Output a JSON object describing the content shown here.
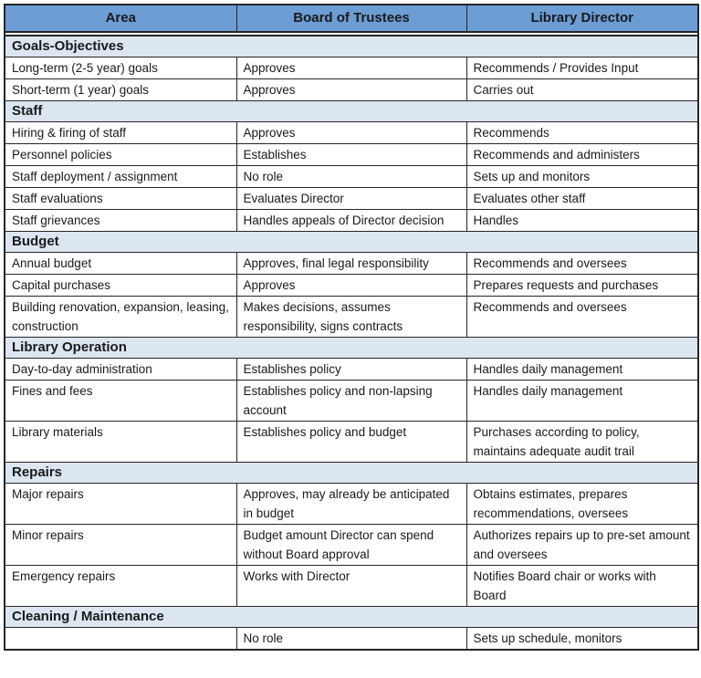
{
  "colors": {
    "header_bg": "#6C9DD4",
    "section_bg": "#DCE6F1",
    "border": "#262626"
  },
  "table": {
    "columns": [
      "Area",
      "Board of Trustees",
      "Library Director"
    ],
    "sections": [
      {
        "title": "Goals-Objectives",
        "rows": [
          [
            "Long-term (2-5 year) goals",
            "Approves",
            "Recommends / Provides Input"
          ],
          [
            "Short-term (1 year) goals",
            "Approves",
            "Carries out"
          ]
        ]
      },
      {
        "title": "Staff",
        "rows": [
          [
            "Hiring & firing of staff",
            "Approves",
            "Recommends"
          ],
          [
            "Personnel policies",
            "Establishes",
            "Recommends and administers"
          ],
          [
            "Staff deployment / assignment",
            "No role",
            "Sets up and monitors"
          ],
          [
            "Staff evaluations",
            "Evaluates Director",
            "Evaluates other staff"
          ],
          [
            "Staff grievances",
            "Handles appeals of Director decision",
            "Handles"
          ]
        ]
      },
      {
        "title": "Budget",
        "rows": [
          [
            "Annual budget",
            "Approves, final legal responsibility",
            "Recommends and oversees"
          ],
          [
            "Capital purchases",
            "Approves",
            "Prepares requests and purchases"
          ],
          [
            "Building renovation, expansion, leasing, construction",
            "Makes decisions, assumes responsibility, signs contracts",
            "Recommends and oversees"
          ]
        ]
      },
      {
        "title": "Library Operation",
        "rows": [
          [
            "Day-to-day administration",
            "Establishes policy",
            "Handles daily management"
          ],
          [
            "Fines and fees",
            "Establishes policy and non-lapsing account",
            "Handles daily management"
          ],
          [
            "Library materials",
            "Establishes policy and budget",
            "Purchases according to policy, maintains adequate audit trail"
          ]
        ]
      },
      {
        "title": "Repairs",
        "rows": [
          [
            "Major repairs",
            "Approves, may already be anticipated in budget",
            "Obtains estimates, prepares recommendations, oversees"
          ],
          [
            "Minor repairs",
            "Budget amount Director can spend without Board approval",
            "Authorizes repairs up to pre-set amount and oversees"
          ],
          [
            "Emergency repairs",
            "Works with Director",
            "Notifies Board chair or works with Board"
          ]
        ]
      },
      {
        "title": "Cleaning / Maintenance",
        "rows": [
          [
            "",
            "No role",
            "Sets up schedule, monitors"
          ]
        ]
      }
    ]
  }
}
